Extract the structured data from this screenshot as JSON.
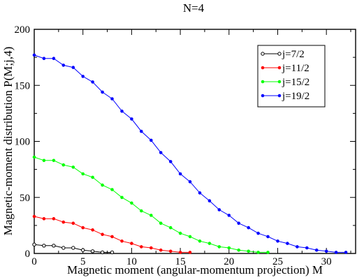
{
  "chart_data": {
    "type": "line",
    "title": "N=4",
    "xlabel": "Magnetic moment (angular-momentum projection) M",
    "ylabel": "Magnetic-moment distribution P(M;j,4)",
    "xlim": [
      0,
      33
    ],
    "ylim": [
      0,
      200
    ],
    "x_ticks": [
      0,
      5,
      10,
      15,
      20,
      25,
      30
    ],
    "y_ticks": [
      0,
      50,
      100,
      150,
      200
    ],
    "grid": false,
    "legend_position": "top-right",
    "series": [
      {
        "name": "j=7/2",
        "color": "#000000",
        "marker": "open-circle",
        "x": [
          0,
          1,
          2,
          3,
          4,
          5,
          6,
          7,
          8
        ],
        "y": [
          8,
          7,
          7,
          5,
          5,
          3,
          2,
          1,
          1
        ]
      },
      {
        "name": "j=11/2",
        "color": "#ff0000",
        "marker": "dot",
        "x": [
          0,
          1,
          2,
          3,
          4,
          5,
          6,
          7,
          8,
          9,
          10,
          11,
          12,
          13,
          14,
          15,
          16
        ],
        "y": [
          33,
          31,
          31,
          28,
          27,
          23,
          21,
          17,
          15,
          11,
          9,
          6,
          5,
          3,
          2,
          1,
          1
        ]
      },
      {
        "name": "j=15/2",
        "color": "#00ff00",
        "marker": "dot",
        "x": [
          0,
          1,
          2,
          3,
          4,
          5,
          6,
          7,
          8,
          9,
          10,
          11,
          12,
          13,
          14,
          15,
          16,
          17,
          18,
          19,
          20,
          21,
          22,
          23,
          24
        ],
        "y": [
          86,
          83,
          83,
          79,
          77,
          71,
          68,
          61,
          57,
          50,
          45,
          38,
          34,
          27,
          23,
          18,
          15,
          11,
          9,
          6,
          5,
          3,
          2,
          1,
          1
        ]
      },
      {
        "name": "j=19/2",
        "color": "#0000ff",
        "marker": "dot",
        "x": [
          0,
          1,
          2,
          3,
          4,
          5,
          6,
          7,
          8,
          9,
          10,
          11,
          12,
          13,
          14,
          15,
          16,
          17,
          18,
          19,
          20,
          21,
          22,
          23,
          24,
          25,
          26,
          27,
          28,
          29,
          30,
          31,
          32
        ],
        "y": [
          177,
          174,
          174,
          168,
          166,
          158,
          153,
          144,
          138,
          127,
          120,
          109,
          101,
          90,
          82,
          71,
          64,
          54,
          47,
          39,
          34,
          27,
          23,
          18,
          15,
          11,
          9,
          6,
          5,
          3,
          2,
          1,
          1
        ]
      }
    ]
  }
}
